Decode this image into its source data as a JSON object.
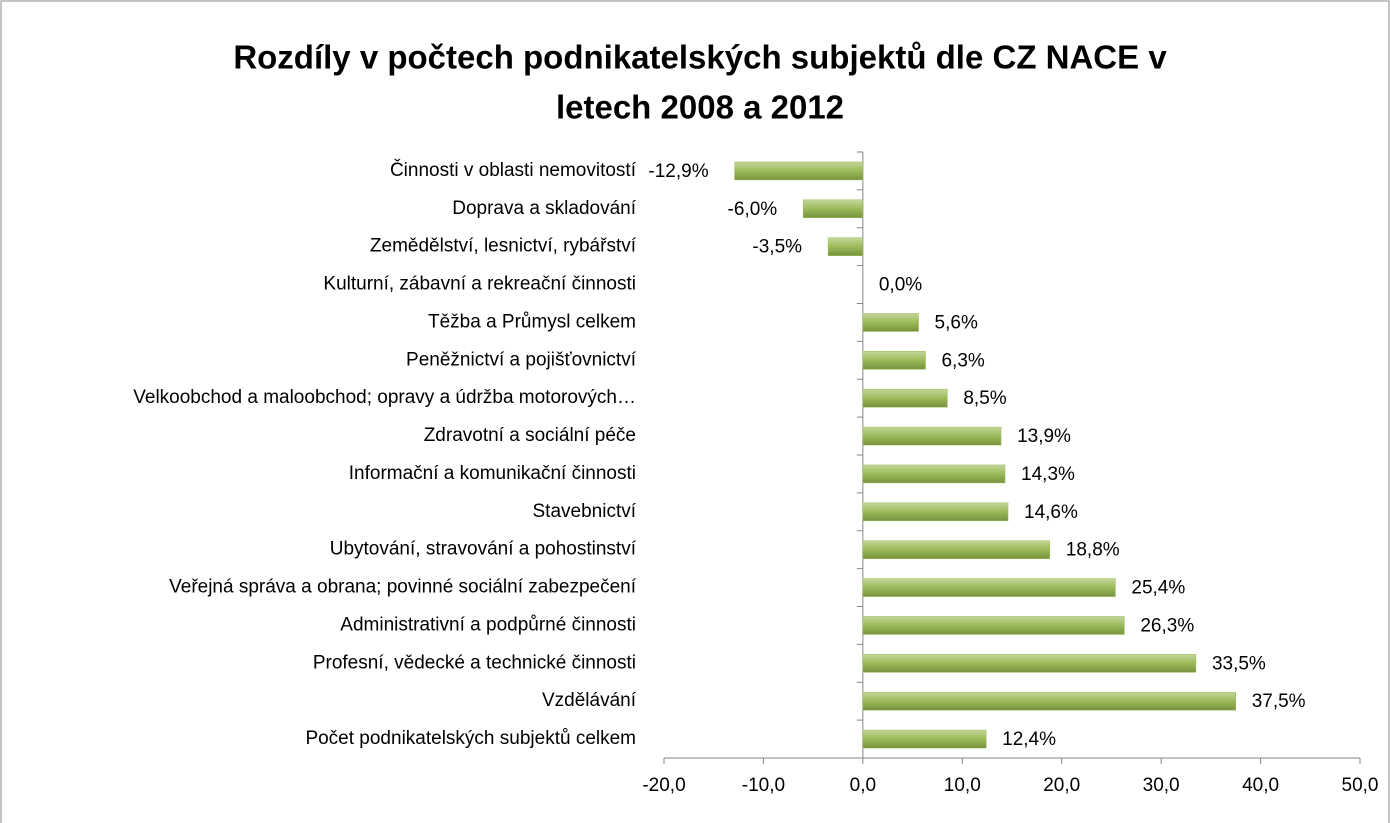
{
  "chart_data": {
    "type": "bar",
    "orientation": "horizontal",
    "title": [
      "Rozdíly v počtech podnikatelských subjektů dle CZ NACE v",
      "letech 2008 a 2012"
    ],
    "categories": [
      "Činnosti v oblasti nemovitostí",
      "Doprava a skladování",
      "Zemědělství, lesnictví, rybářství",
      "Kulturní, zábavní a rekreační činnosti",
      "Těžba a Průmysl celkem",
      "Peněžnictví a pojišťovnictví",
      "Velkoobchod a maloobchod; opravy a údržba motorových…",
      "Zdravotní a sociální péče",
      "Informační a komunikační činnosti",
      "Stavebnictví",
      "Ubytování, stravování a pohostinství",
      "Veřejná správa a obrana; povinné sociální zabezpečení",
      "Administrativní a podpůrné činnosti",
      "Profesní, vědecké a technické činnosti",
      "Vzdělávání",
      "Počet podnikatelských subjektů celkem"
    ],
    "values": [
      -12.9,
      -6.0,
      -3.5,
      0.0,
      5.6,
      6.3,
      8.5,
      13.9,
      14.3,
      14.6,
      18.8,
      25.4,
      26.3,
      33.5,
      37.5,
      12.4
    ],
    "value_labels": [
      "-12,9%",
      "-6,0%",
      "-3,5%",
      "0,0%",
      "5,6%",
      "6,3%",
      "8,5%",
      "13,9%",
      "14,3%",
      "14,6%",
      "18,8%",
      "25,4%",
      "26,3%",
      "33,5%",
      "37,5%",
      "12,4%"
    ],
    "color": "#9bbb59",
    "xlim": [
      -20,
      50
    ],
    "xticks": [
      {
        "value": -20,
        "label": "-20,0"
      },
      {
        "value": -10,
        "label": "-10,0"
      },
      {
        "value": 0,
        "label": "0,0"
      },
      {
        "value": 10,
        "label": "10,0"
      },
      {
        "value": 20,
        "label": "20,0"
      },
      {
        "value": 30,
        "label": "30,0"
      },
      {
        "value": 40,
        "label": "40,0"
      },
      {
        "value": 50,
        "label": "50,0"
      }
    ],
    "grid": false
  }
}
